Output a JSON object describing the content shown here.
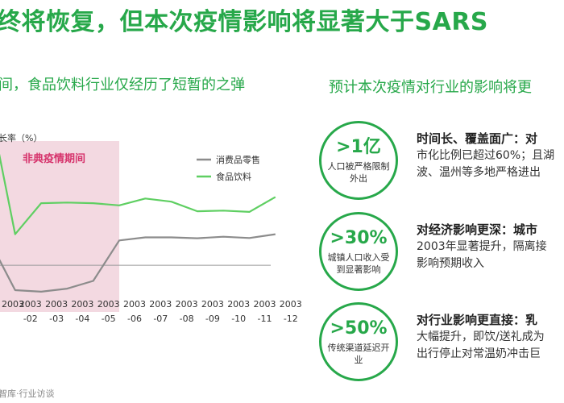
{
  "title": "终将恢复，但本次疫情影响将显著大于SARS",
  "left_subtitle": "间，食品饮料行业仅经历了短暂的之弹",
  "right_subtitle": "预计本次疫情对行业的影响将更",
  "footer": "智库·行业访谈",
  "chart_data": {
    "type": "line",
    "ylabel": "长率（%）",
    "shaded_label": "非典疫情期间",
    "shaded_range": [
      "2003-01",
      "2003-06"
    ],
    "categories": [
      "2003-01",
      "2003-02",
      "2003-03",
      "2003-04",
      "2003-05",
      "2003-06",
      "2003-07",
      "2003-08",
      "2003-09",
      "2003-10",
      "2003-11",
      "2003-12"
    ],
    "x_tick_top": [
      "2003",
      "2003",
      "2003",
      "2003",
      "2003",
      "2003",
      "2003",
      "2003",
      "2003",
      "2003",
      "2003"
    ],
    "x_tick_bottom": [
      "-02",
      "-03",
      "-04",
      "-05",
      "-06",
      "-07",
      "-08",
      "-09",
      "-10",
      "-11",
      "-12"
    ],
    "series": [
      {
        "name": "消费品零售",
        "color": "#8c8c8c",
        "values": [
          null,
          -8,
          -8.5,
          -7.5,
          -5,
          8,
          9,
          9,
          8.7,
          9.2,
          8.8,
          10
        ]
      },
      {
        "name": "食品饮料",
        "color": "#5fcf62",
        "values": [
          null,
          10,
          20,
          20.2,
          20,
          19.3,
          21.5,
          20.5,
          17.4,
          17.6,
          17.2,
          22
        ]
      }
    ],
    "ylim": [
      -15,
      40
    ],
    "grid": false,
    "legend_position": "top-right"
  },
  "items": [
    {
      "big": ">1亿",
      "desc": "人口被严格限制外出",
      "head": "时间长、覆盖面广：对",
      "lines": [
        "市化比例已超过60%；且湖",
        "波、温州等多地严格进出"
      ]
    },
    {
      "big": ">30%",
      "desc": "城镇人口收入受到显著影响",
      "head": "对经济影响更深：城市",
      "lines": [
        "2003年显著提升，隔离接",
        "影响预期收入"
      ]
    },
    {
      "big": ">50%",
      "desc": "传统渠道延迟开业",
      "head": "对行业影响更直接：乳",
      "lines": [
        "大幅提升，即饮/送礼成为",
        "出行停止对常温奶冲击巨"
      ]
    }
  ]
}
